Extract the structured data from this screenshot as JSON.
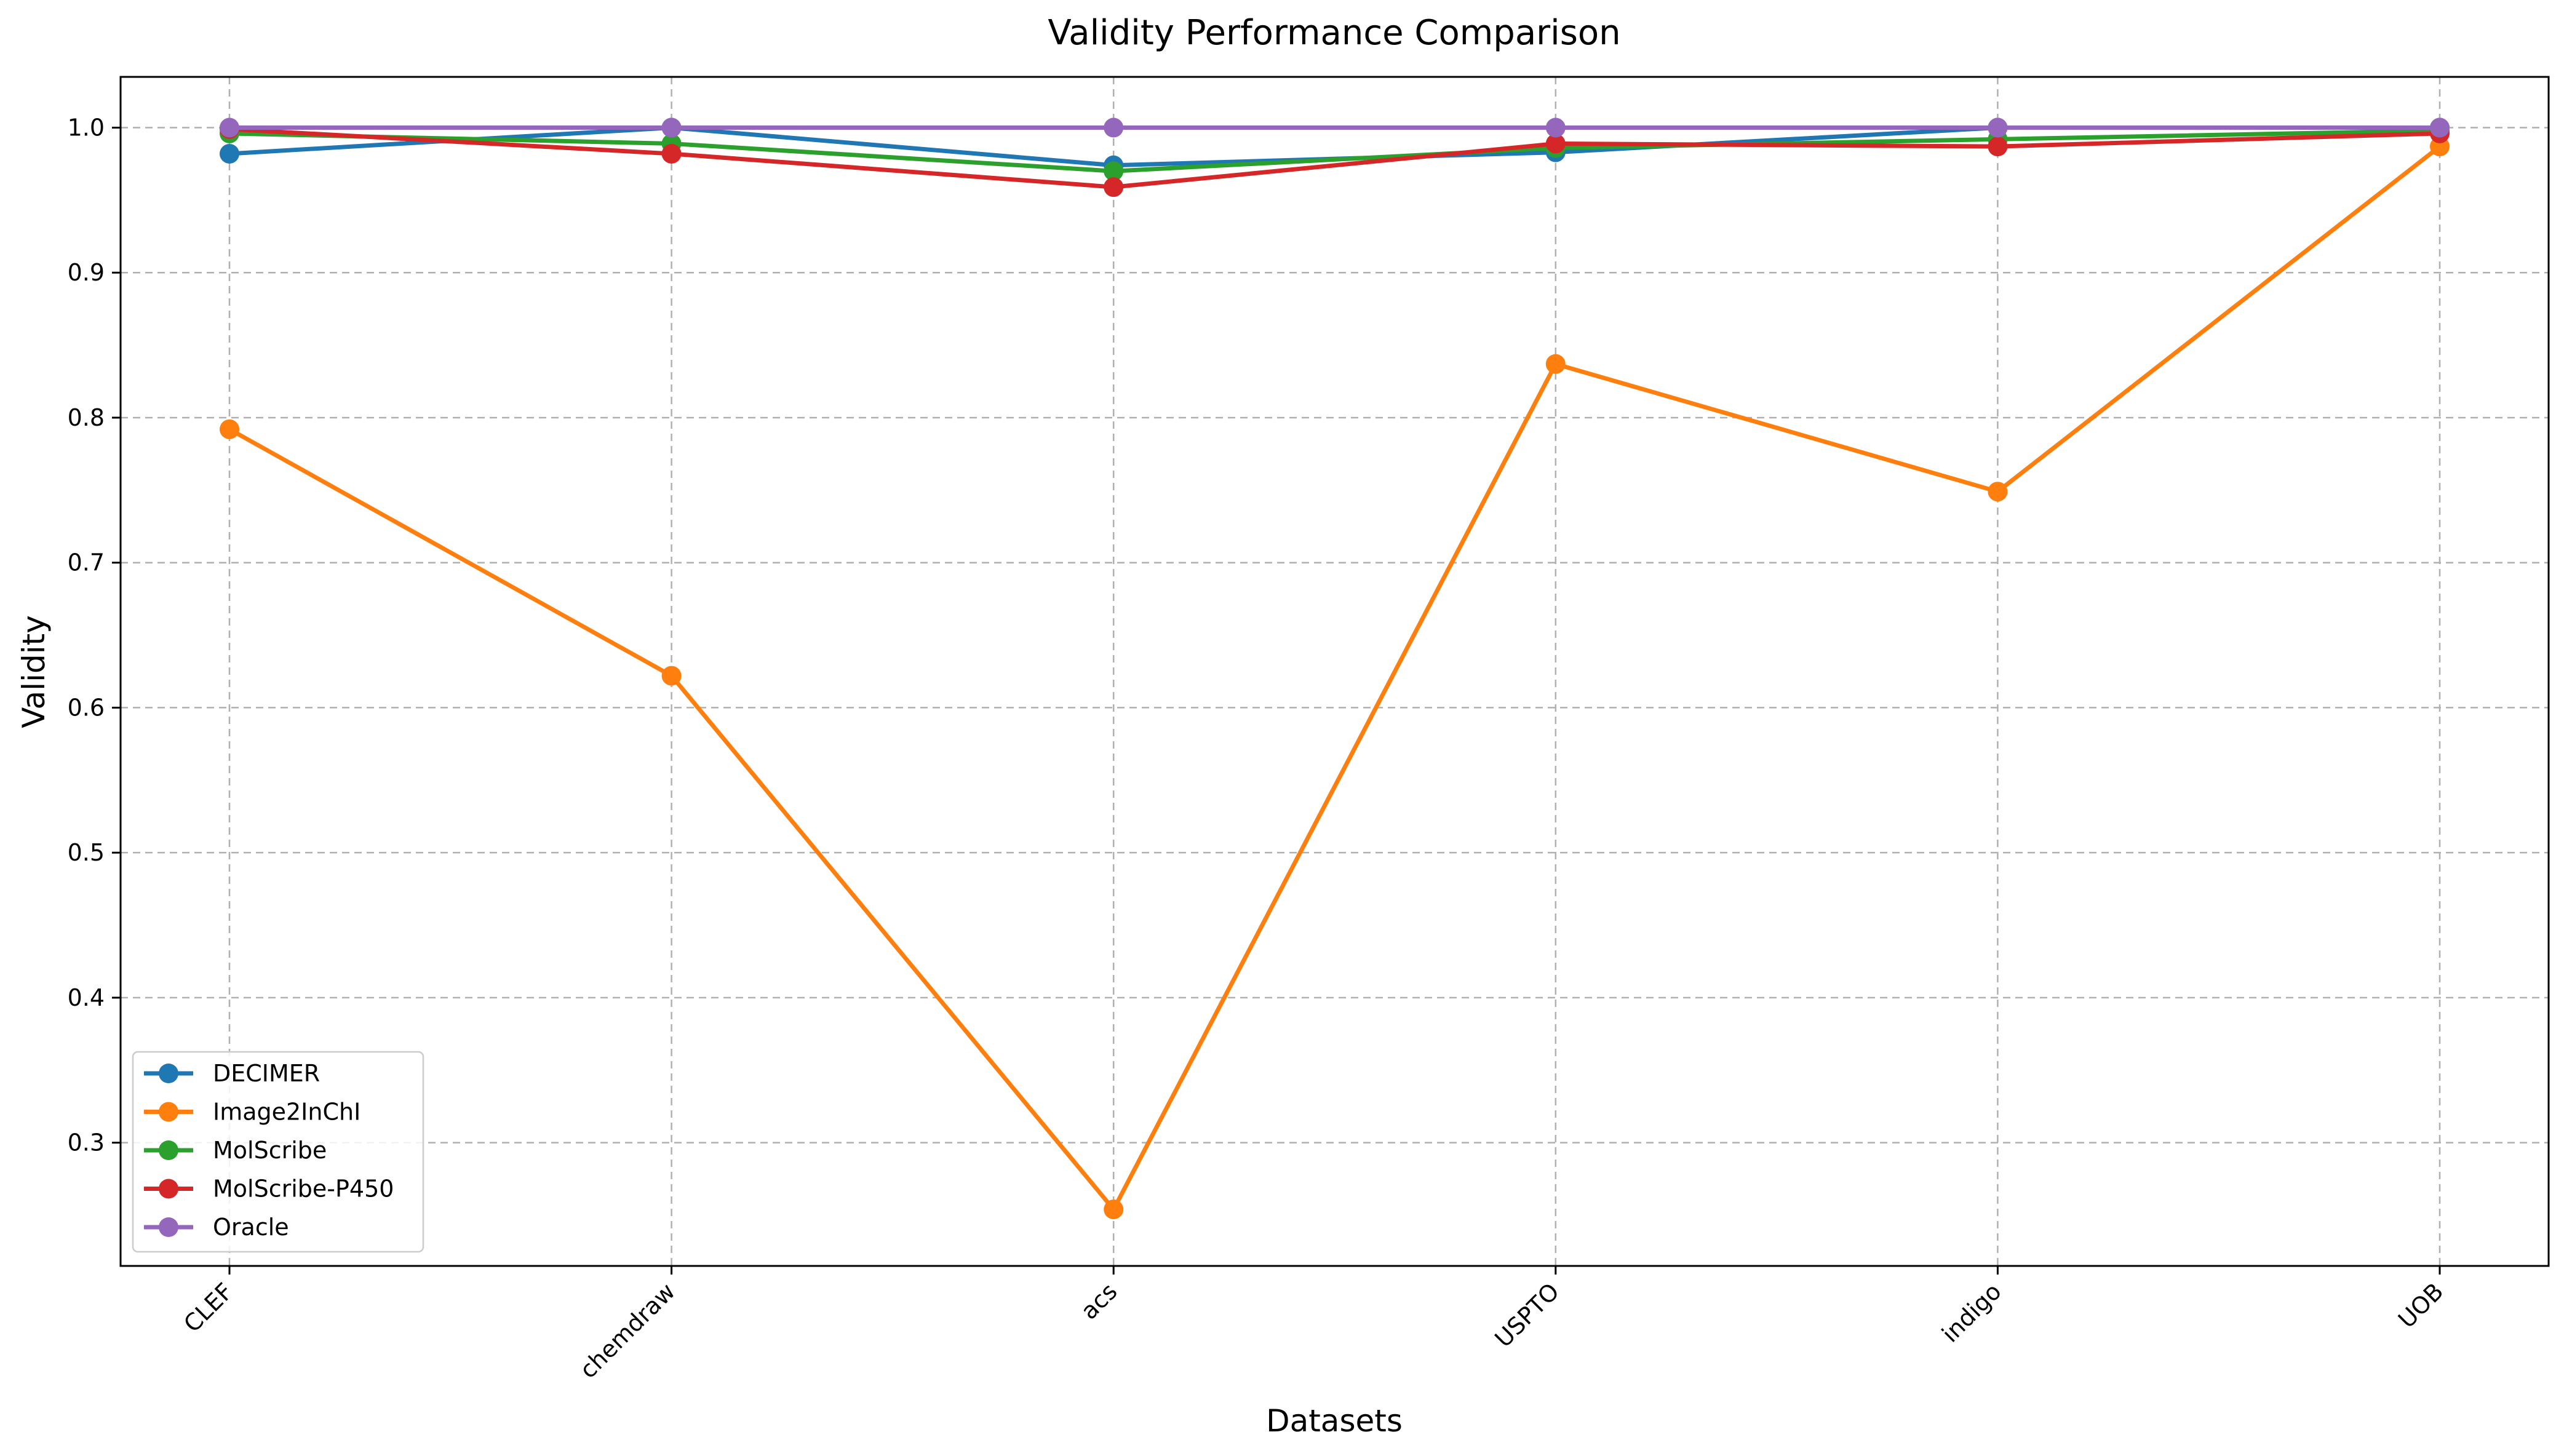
{
  "chart_data": {
    "type": "line",
    "title": "Validity Performance Comparison",
    "xlabel": "Datasets",
    "ylabel": "Validity",
    "categories": [
      "CLEF",
      "chemdraw",
      "acs",
      "USPTO",
      "indigo",
      "UOB"
    ],
    "ylim": [
      0.215,
      1.035
    ],
    "yticks": [
      0.3,
      0.4,
      0.5,
      0.6,
      0.7,
      0.8,
      0.9,
      1.0
    ],
    "ytick_labels": [
      "0.3",
      "0.4",
      "0.5",
      "0.6",
      "0.7",
      "0.8",
      "0.9",
      "1.0"
    ],
    "grid": true,
    "legend_position": "lower-left",
    "series": [
      {
        "name": "DECIMER",
        "color": "#1f77b4",
        "values": [
          0.982,
          1.0,
          0.974,
          0.983,
          1.0,
          1.0
        ]
      },
      {
        "name": "Image2InChI",
        "color": "#ff7f0e",
        "values": [
          0.792,
          0.622,
          0.254,
          0.837,
          0.749,
          0.987
        ]
      },
      {
        "name": "MolScribe",
        "color": "#2ca02c",
        "values": [
          0.996,
          0.989,
          0.97,
          0.986,
          0.992,
          0.998
        ]
      },
      {
        "name": "MolScribe-P450",
        "color": "#d62728",
        "values": [
          0.999,
          0.982,
          0.959,
          0.989,
          0.987,
          0.996
        ]
      },
      {
        "name": "Oracle",
        "color": "#9467bd",
        "values": [
          1.0,
          1.0,
          1.0,
          1.0,
          1.0,
          1.0
        ]
      }
    ]
  }
}
